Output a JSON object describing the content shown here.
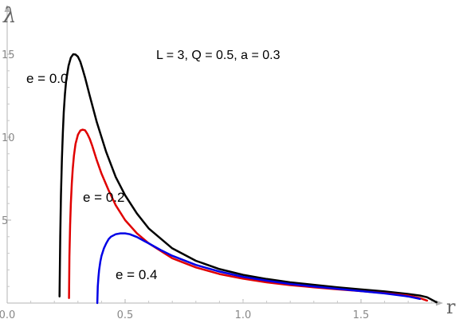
{
  "chart_data": {
    "type": "line",
    "title": "",
    "xlabel": "r",
    "ylabel": "λ",
    "xlim": [
      0,
      1.85
    ],
    "ylim": [
      0,
      16
    ],
    "x_ticks": [
      0.0,
      0.5,
      1.0,
      1.5
    ],
    "x_tick_labels": [
      "0.0",
      "0.5",
      "1.0",
      "1.5"
    ],
    "y_ticks": [
      5,
      10,
      15
    ],
    "y_tick_labels": [
      "5",
      "10",
      "15"
    ],
    "grid": false,
    "annotation": "L = 3,  Q = 0.5,  a = 0.3",
    "series": [
      {
        "name": "e = 0.0",
        "color": "#000000",
        "label": "e = 0.0",
        "x": [
          0.222,
          0.225,
          0.228,
          0.232,
          0.236,
          0.24,
          0.245,
          0.25,
          0.26,
          0.27,
          0.28,
          0.29,
          0.3,
          0.31,
          0.32,
          0.33,
          0.35,
          0.38,
          0.42,
          0.46,
          0.5,
          0.55,
          0.6,
          0.7,
          0.8,
          0.9,
          1.0,
          1.1,
          1.2,
          1.3,
          1.4,
          1.5,
          1.6,
          1.7,
          1.75,
          1.78,
          1.8,
          1.82
        ],
        "y": [
          0.4,
          4.0,
          6.5,
          8.7,
          10.3,
          11.5,
          12.6,
          13.4,
          14.3,
          14.8,
          15.0,
          14.98,
          14.85,
          14.55,
          14.1,
          13.6,
          12.5,
          10.9,
          9.1,
          7.6,
          6.5,
          5.4,
          4.5,
          3.3,
          2.55,
          2.05,
          1.7,
          1.45,
          1.25,
          1.1,
          0.95,
          0.82,
          0.7,
          0.55,
          0.45,
          0.35,
          0.2,
          0.05
        ]
      },
      {
        "name": "e = 0.2",
        "color": "#e00000",
        "label": "e = 0.2",
        "x": [
          0.262,
          0.264,
          0.267,
          0.27,
          0.274,
          0.278,
          0.283,
          0.29,
          0.3,
          0.31,
          0.32,
          0.33,
          0.34,
          0.35,
          0.36,
          0.38,
          0.4,
          0.43,
          0.46,
          0.5,
          0.55,
          0.6,
          0.7,
          0.8,
          0.9,
          1.0,
          1.1,
          1.2,
          1.3,
          1.4,
          1.5,
          1.6,
          1.7,
          1.75,
          1.78
        ],
        "y": [
          0.3,
          2.8,
          4.7,
          6.0,
          7.2,
          8.1,
          8.9,
          9.6,
          10.15,
          10.4,
          10.45,
          10.42,
          10.2,
          9.9,
          9.5,
          8.6,
          7.8,
          6.8,
          5.9,
          5.0,
          4.2,
          3.6,
          2.7,
          2.15,
          1.75,
          1.47,
          1.25,
          1.08,
          0.95,
          0.83,
          0.72,
          0.6,
          0.45,
          0.3,
          0.15
        ]
      },
      {
        "name": "e = 0.4",
        "color": "#0000e6",
        "label": "e = 0.4",
        "x": [
          0.382,
          0.384,
          0.387,
          0.39,
          0.395,
          0.4,
          0.41,
          0.42,
          0.43,
          0.44,
          0.46,
          0.48,
          0.5,
          0.52,
          0.55,
          0.58,
          0.6,
          0.65,
          0.7,
          0.8,
          0.9,
          1.0,
          1.1,
          1.2,
          1.3,
          1.4,
          1.5,
          1.6,
          1.7,
          1.75
        ],
        "y": [
          0.0,
          1.0,
          1.6,
          2.0,
          2.5,
          2.85,
          3.3,
          3.6,
          3.85,
          4.0,
          4.15,
          4.2,
          4.2,
          4.15,
          3.98,
          3.75,
          3.6,
          3.2,
          2.85,
          2.3,
          1.9,
          1.58,
          1.35,
          1.15,
          1.0,
          0.86,
          0.72,
          0.58,
          0.4,
          0.25
        ]
      }
    ]
  }
}
